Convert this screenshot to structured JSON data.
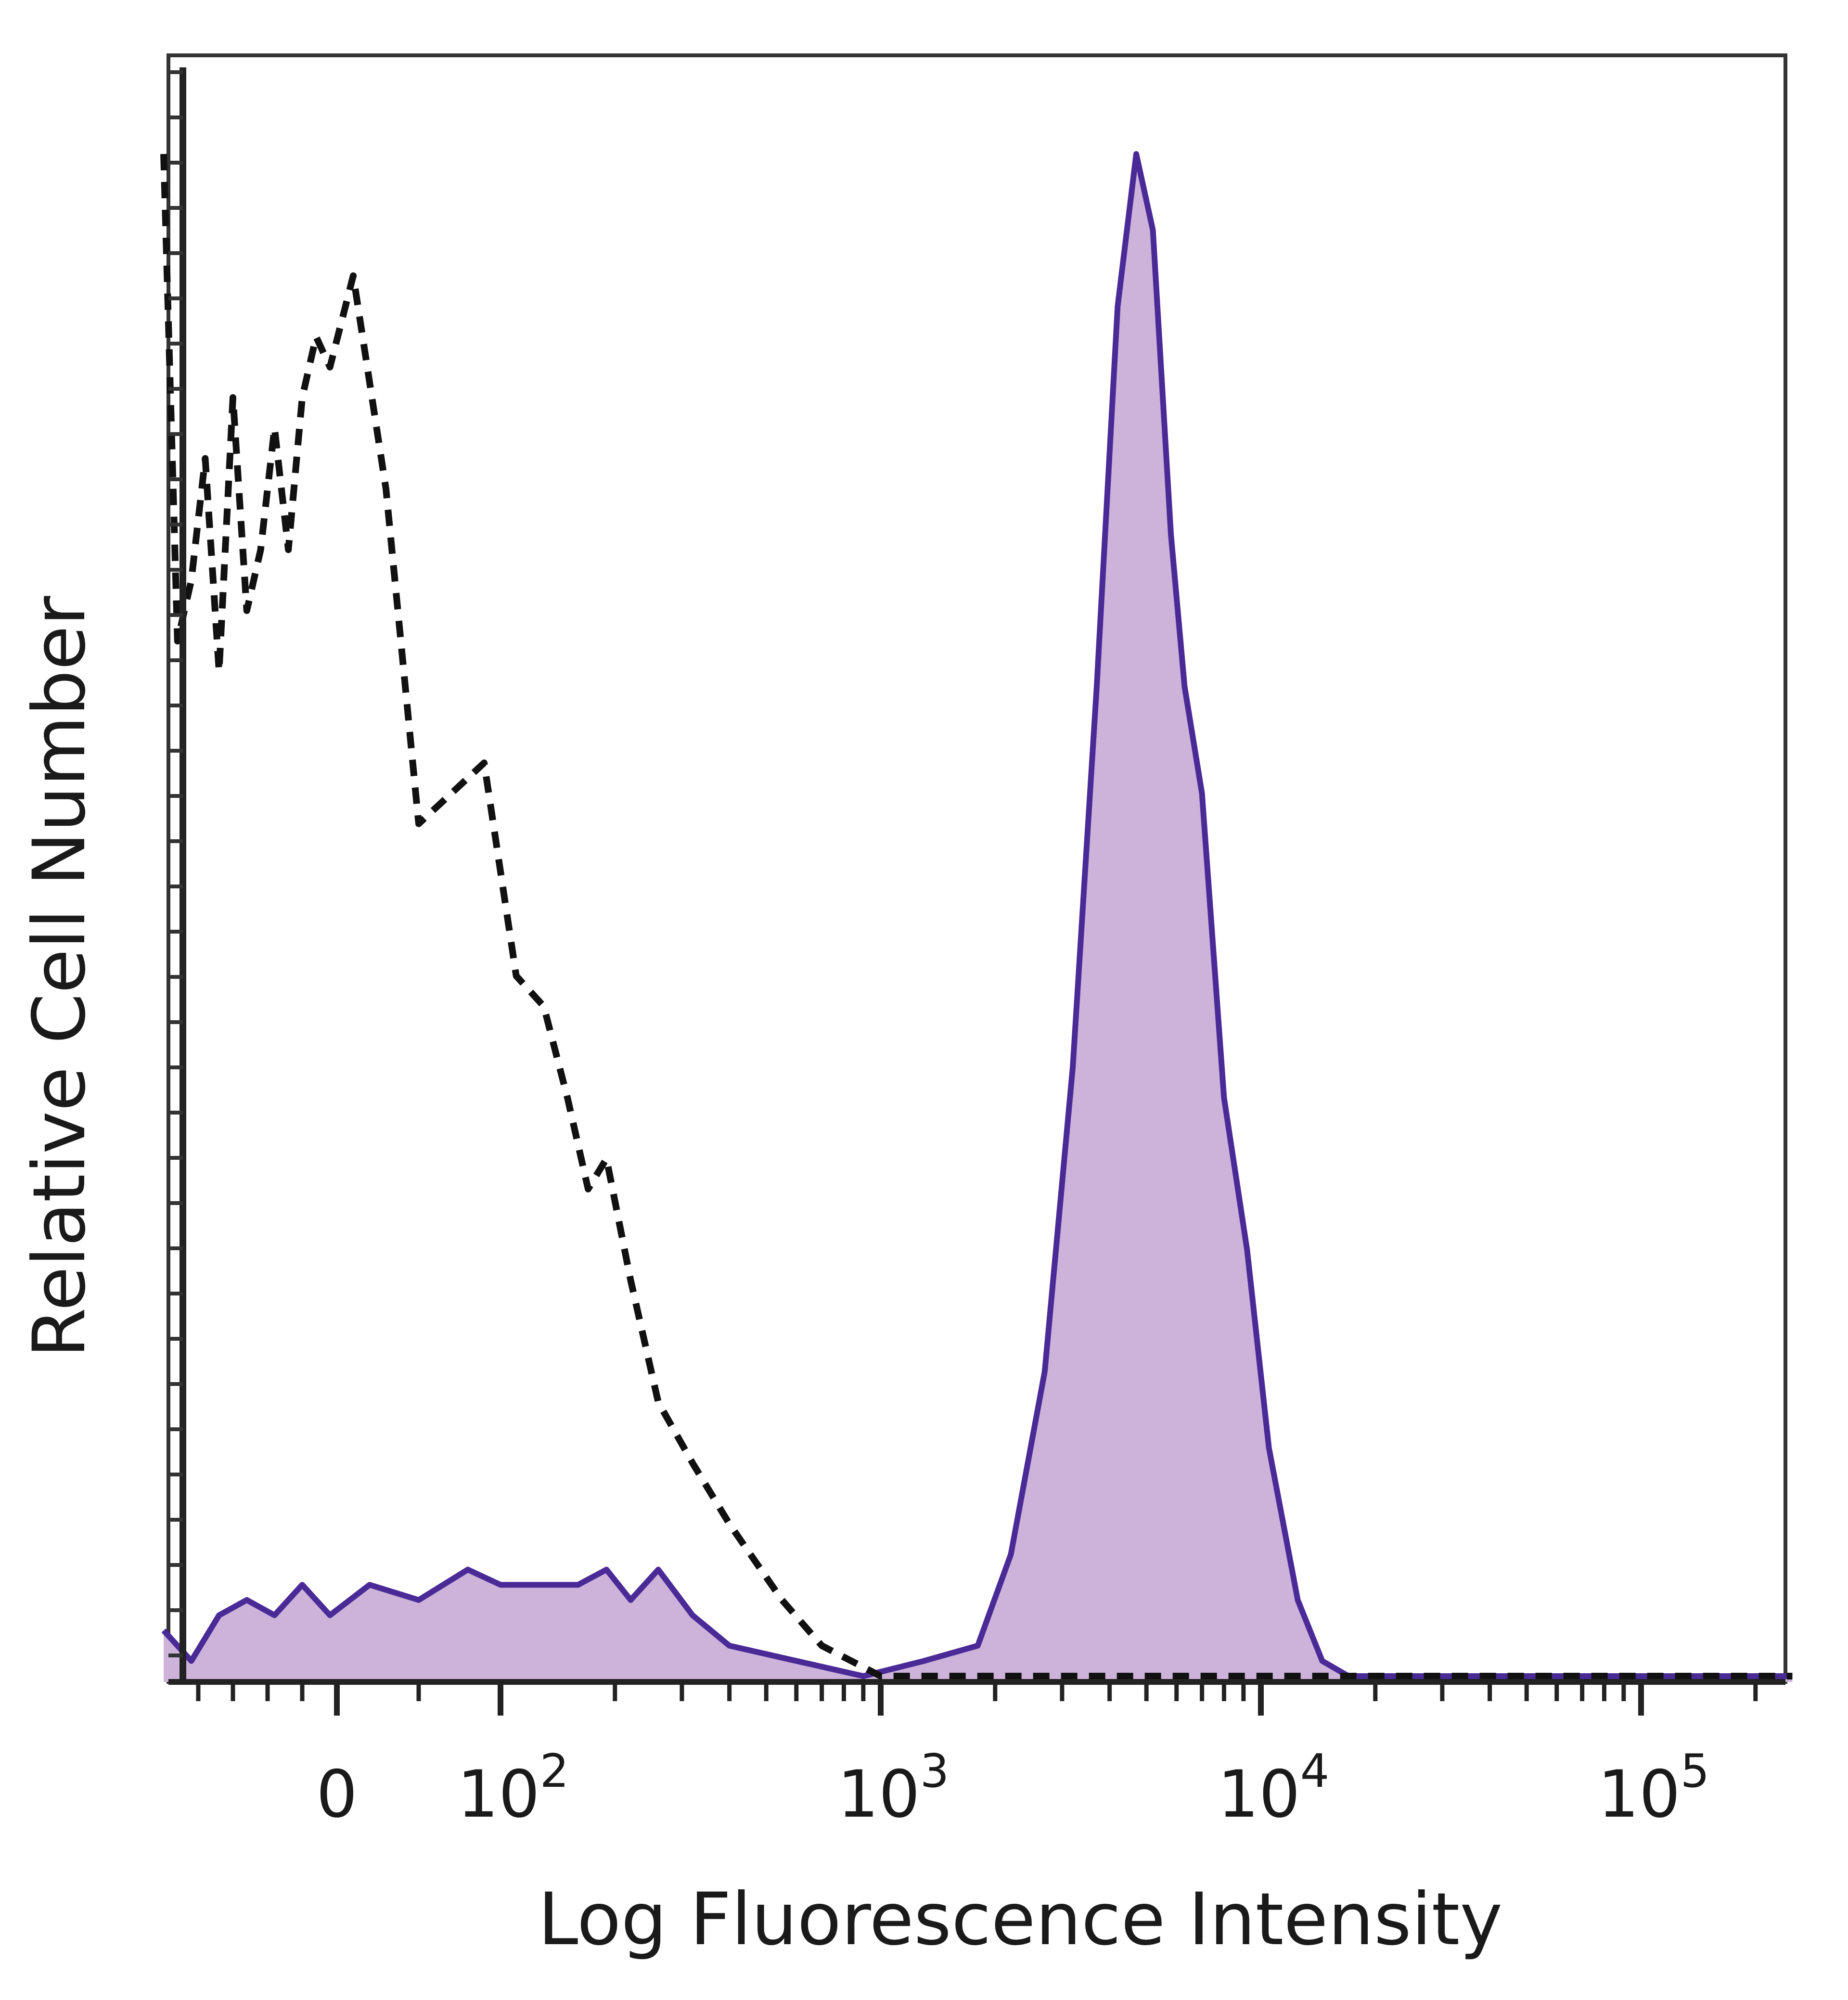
{
  "chart_data": {
    "type": "area",
    "title": "",
    "xlabel": "Log Fluorescence Intensity",
    "ylabel": "Relative Cell Number",
    "x_scale": "biexponential",
    "xlim": [
      -250,
      250000
    ],
    "ylim": [
      0,
      100
    ],
    "x_tick_labels": [
      {
        "value": 0,
        "base": "0",
        "exp": ""
      },
      {
        "value": 100,
        "base": "10",
        "exp": "2"
      },
      {
        "value": 1000,
        "base": "10",
        "exp": "3"
      },
      {
        "value": 10000,
        "base": "10",
        "exp": "4"
      },
      {
        "value": 100000,
        "base": "10",
        "exp": "5"
      }
    ],
    "grid": false,
    "colors": {
      "stained_line": "#4a2a96",
      "stained_fill": "#cdb3d9",
      "control_line": "#111111",
      "frame": "#333333"
    },
    "series": [
      {
        "style": "solid-filled",
        "x": [
          -250,
          -210,
          -170,
          -130,
          -90,
          -50,
          -10,
          20,
          50,
          80,
          100,
          130,
          160,
          190,
          220,
          260,
          320,
          400,
          600,
          900,
          1300,
          1800,
          2200,
          2700,
          3200,
          3700,
          4200,
          4700,
          5200,
          5800,
          6300,
          7000,
          8000,
          9200,
          10500,
          12500,
          14500,
          17000,
          20000,
          50000,
          250000
        ],
        "y": [
          3,
          1,
          4,
          5,
          4,
          6,
          4,
          6,
          5,
          7,
          6,
          6,
          6,
          7,
          5,
          7,
          4,
          2,
          1,
          0,
          1,
          2,
          8,
          20,
          40,
          65,
          90,
          100,
          95,
          75,
          65,
          58,
          38,
          28,
          15,
          5,
          1,
          0,
          0,
          0,
          0
        ]
      },
      {
        "style": "dashed",
        "x": [
          -250,
          -230,
          -210,
          -190,
          -170,
          -150,
          -130,
          -110,
          -90,
          -70,
          -50,
          -30,
          -10,
          10,
          30,
          50,
          70,
          90,
          110,
          130,
          150,
          170,
          190,
          220,
          260,
          320,
          400,
          550,
          700,
          1000,
          1500,
          3000,
          10000,
          100000,
          250000
        ],
        "y": [
          100,
          68,
          72,
          80,
          66,
          84,
          70,
          74,
          82,
          74,
          84,
          88,
          86,
          92,
          78,
          56,
          58,
          60,
          46,
          44,
          38,
          32,
          34,
          26,
          18,
          14,
          10,
          5,
          2,
          0,
          0,
          0,
          0,
          0,
          0
        ]
      }
    ]
  }
}
